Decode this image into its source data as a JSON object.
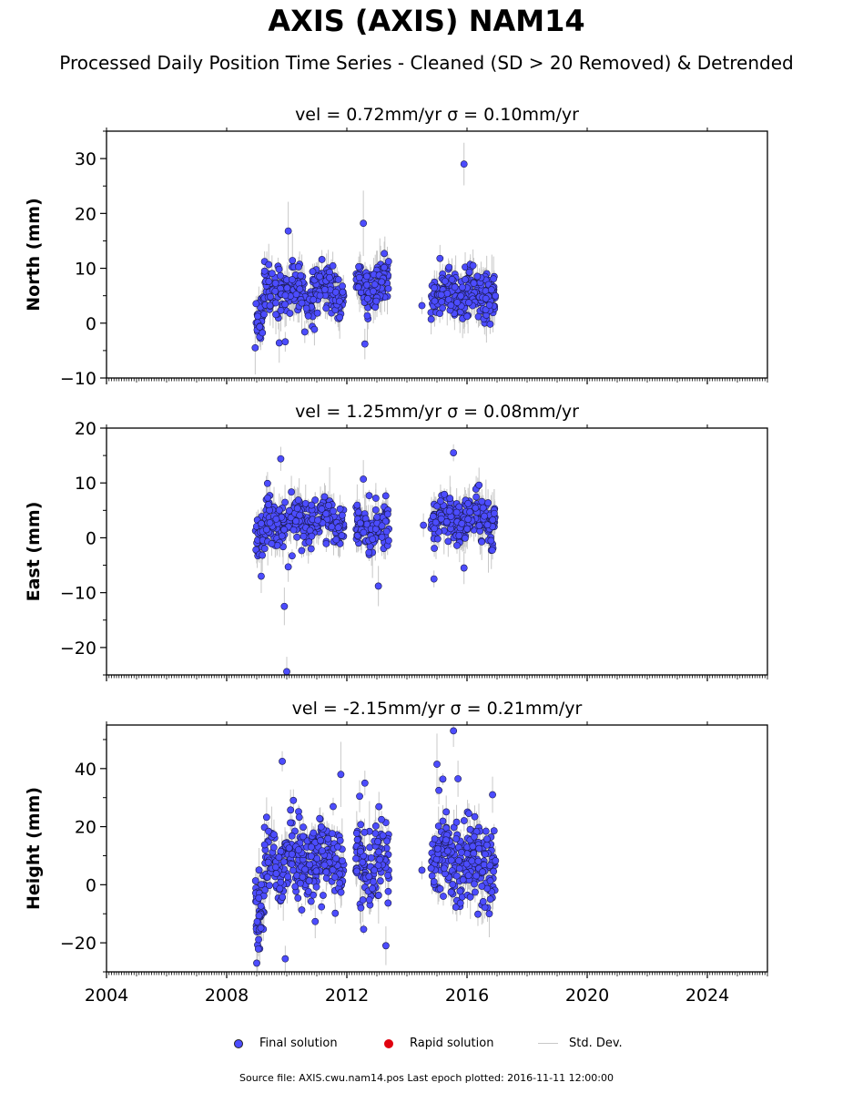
{
  "title": "AXIS (AXIS) NAM14",
  "subtitle": "Processed Daily Position Time Series - Cleaned (SD > 20 Removed) & Detrended",
  "legend": {
    "final": "Final solution",
    "rapid": "Rapid solution",
    "stddev": "Std. Dev."
  },
  "footer": "Source file: AXIS.cwu.nam14.pos  Last epoch plotted: 2016-11-11 12:00:00",
  "colors": {
    "final": "#4c4cff",
    "rapid": "#e0000f",
    "stddev": "#c8c8c8"
  },
  "chart_data": [
    {
      "type": "scatter",
      "panel_title": "vel = 0.72mm/yr   σ = 0.10mm/yr",
      "ylabel": "North (mm)",
      "xlim": [
        2004,
        2026
      ],
      "ylim": [
        -10,
        35
      ],
      "yticks": [
        -10,
        0,
        10,
        20,
        30
      ],
      "xticks": [
        2004,
        2008,
        2012,
        2016,
        2020,
        2024
      ],
      "clusters": [
        {
          "x0": 2008.95,
          "x1": 2009.25,
          "center": 0.5,
          "spread": 2.2,
          "n": 40
        },
        {
          "x0": 2009.25,
          "x1": 2011.9,
          "center": 6.0,
          "spread": 2.0,
          "n": 260
        },
        {
          "x0": 2012.3,
          "x1": 2013.4,
          "center": 6.8,
          "spread": 2.0,
          "n": 110
        },
        {
          "x0": 2014.8,
          "x1": 2016.95,
          "center": 5.0,
          "spread": 2.0,
          "n": 230
        }
      ],
      "outliers": [
        {
          "x": 2008.95,
          "y": -4.5
        },
        {
          "x": 2009.75,
          "y": -3.6
        },
        {
          "x": 2009.95,
          "y": -3.4
        },
        {
          "x": 2010.05,
          "y": 16.8
        },
        {
          "x": 2010.6,
          "y": -1.6
        },
        {
          "x": 2012.55,
          "y": 18.2
        },
        {
          "x": 2012.6,
          "y": -3.8
        },
        {
          "x": 2014.5,
          "y": 3.2
        },
        {
          "x": 2015.9,
          "y": 29.0
        },
        {
          "x": 2016.2,
          "y": 10.5
        },
        {
          "x": 2015.1,
          "y": 11.8
        }
      ]
    },
    {
      "type": "scatter",
      "panel_title": "vel = 1.25mm/yr   σ = 0.08mm/yr",
      "ylabel": "East (mm)",
      "xlim": [
        2004,
        2026
      ],
      "ylim": [
        -25,
        20
      ],
      "yticks": [
        -20,
        -10,
        0,
        10,
        20
      ],
      "xticks": [
        2004,
        2008,
        2012,
        2016,
        2020,
        2024
      ],
      "clusters": [
        {
          "x0": 2008.95,
          "x1": 2009.3,
          "center": 0.0,
          "spread": 1.8,
          "n": 40
        },
        {
          "x0": 2009.3,
          "x1": 2011.9,
          "center": 3.0,
          "spread": 1.9,
          "n": 260
        },
        {
          "x0": 2012.3,
          "x1": 2013.4,
          "center": 2.0,
          "spread": 2.0,
          "n": 110
        },
        {
          "x0": 2014.8,
          "x1": 2016.95,
          "center": 3.0,
          "spread": 1.9,
          "n": 230
        }
      ],
      "outliers": [
        {
          "x": 2009.15,
          "y": -7.0
        },
        {
          "x": 2009.8,
          "y": 14.4
        },
        {
          "x": 2009.92,
          "y": -12.5
        },
        {
          "x": 2010.0,
          "y": -24.4
        },
        {
          "x": 2010.05,
          "y": -5.3
        },
        {
          "x": 2012.55,
          "y": 10.7
        },
        {
          "x": 2013.05,
          "y": -8.8
        },
        {
          "x": 2014.9,
          "y": -7.5
        },
        {
          "x": 2015.55,
          "y": 15.5
        },
        {
          "x": 2014.55,
          "y": 2.3
        },
        {
          "x": 2016.4,
          "y": 9.6
        },
        {
          "x": 2015.9,
          "y": -5.5
        }
      ]
    },
    {
      "type": "scatter",
      "panel_title": "vel = -2.15mm/yr   σ = 0.21mm/yr",
      "ylabel": "Height (mm)",
      "xlim": [
        2004,
        2026
      ],
      "ylim": [
        -30,
        55
      ],
      "yticks": [
        -20,
        0,
        20,
        40
      ],
      "xticks": [
        2004,
        2008,
        2012,
        2016,
        2020,
        2024
      ],
      "xticklabels": [
        "2004",
        "2008",
        "2012",
        "2016",
        "2020",
        "2024"
      ],
      "clusters": [
        {
          "x0": 2008.95,
          "x1": 2009.25,
          "center": -10.0,
          "spread": 7.0,
          "n": 45
        },
        {
          "x0": 2009.25,
          "x1": 2011.9,
          "center": 8.0,
          "spread": 7.0,
          "n": 270
        },
        {
          "x0": 2012.3,
          "x1": 2013.4,
          "center": 7.0,
          "spread": 7.5,
          "n": 110
        },
        {
          "x0": 2014.8,
          "x1": 2016.95,
          "center": 8.0,
          "spread": 7.0,
          "n": 230
        }
      ],
      "outliers": [
        {
          "x": 2009.0,
          "y": -27.0
        },
        {
          "x": 2009.85,
          "y": 42.5
        },
        {
          "x": 2009.95,
          "y": -25.5
        },
        {
          "x": 2011.8,
          "y": 38.0
        },
        {
          "x": 2012.6,
          "y": 35.0
        },
        {
          "x": 2013.3,
          "y": -21.0
        },
        {
          "x": 2014.5,
          "y": 5.0
        },
        {
          "x": 2015.0,
          "y": 41.5
        },
        {
          "x": 2015.55,
          "y": 53.0
        },
        {
          "x": 2015.7,
          "y": 36.5
        },
        {
          "x": 2016.85,
          "y": 31.0
        }
      ]
    }
  ]
}
